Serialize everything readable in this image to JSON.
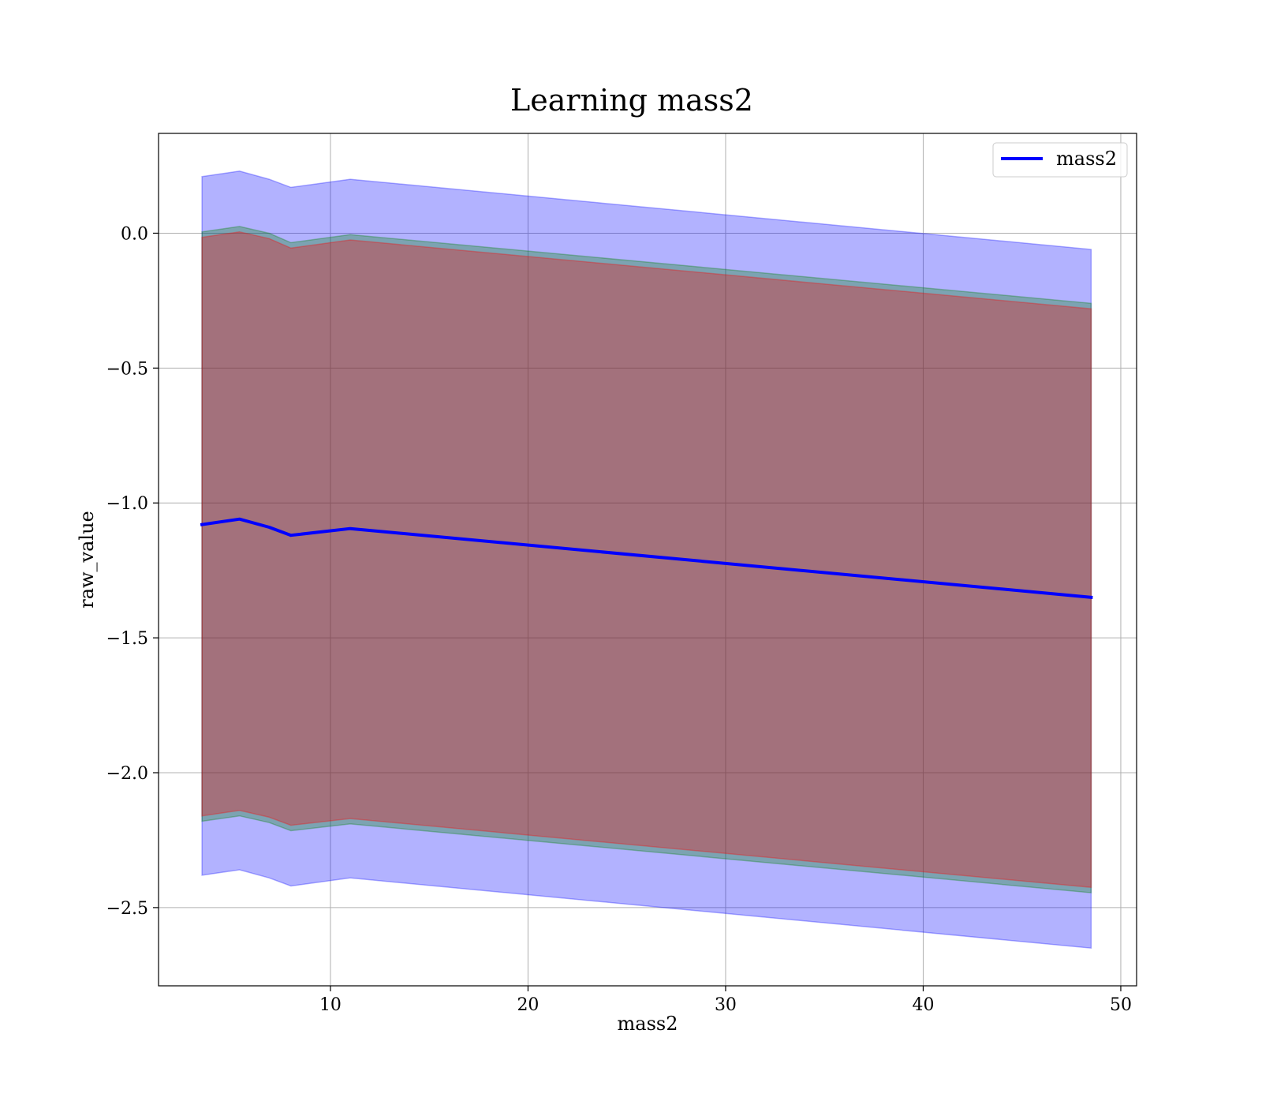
{
  "chart_data": {
    "type": "line",
    "title": "Learning mass2",
    "xlabel": "mass2",
    "ylabel": "raw_value",
    "xlim": [
      1.3,
      50.8
    ],
    "ylim": [
      -2.79,
      0.37
    ],
    "xticks": [
      10,
      20,
      30,
      40,
      50
    ],
    "yticks": [
      0.0,
      -0.5,
      -1.0,
      -1.5,
      -2.0,
      -2.5
    ],
    "xtick_labels": [
      "10",
      "20",
      "30",
      "40",
      "50"
    ],
    "ytick_labels": [
      "0.0",
      "−0.5",
      "−1.0",
      "−1.5",
      "−2.0",
      "−2.5"
    ],
    "grid": true,
    "legend_position": "top-right",
    "x": [
      3.5,
      5.4,
      6.9,
      8.0,
      11.0,
      48.5
    ],
    "series": [
      {
        "name": "mass2",
        "color": "#0000ff",
        "values": [
          -1.08,
          -1.06,
          -1.09,
          -1.12,
          -1.095,
          -1.35
        ]
      }
    ],
    "bands": [
      {
        "color": "#0000ff",
        "opacity": 0.3,
        "lower": [
          -2.38,
          -2.36,
          -2.39,
          -2.42,
          -2.39,
          -2.65
        ],
        "upper": [
          0.21,
          0.23,
          0.2,
          0.17,
          0.2,
          -0.06
        ]
      },
      {
        "color": "#008000",
        "opacity": 0.3,
        "lower": [
          -2.18,
          -2.16,
          -2.185,
          -2.215,
          -2.19,
          -2.445
        ],
        "upper": [
          0.005,
          0.025,
          0.0,
          -0.035,
          -0.005,
          -0.26
        ]
      },
      {
        "color": "#ff0000",
        "opacity": 0.3,
        "lower": [
          -2.16,
          -2.14,
          -2.165,
          -2.195,
          -2.17,
          -2.425
        ],
        "upper": [
          -0.015,
          0.005,
          -0.02,
          -0.055,
          -0.025,
          -0.28
        ]
      }
    ]
  }
}
